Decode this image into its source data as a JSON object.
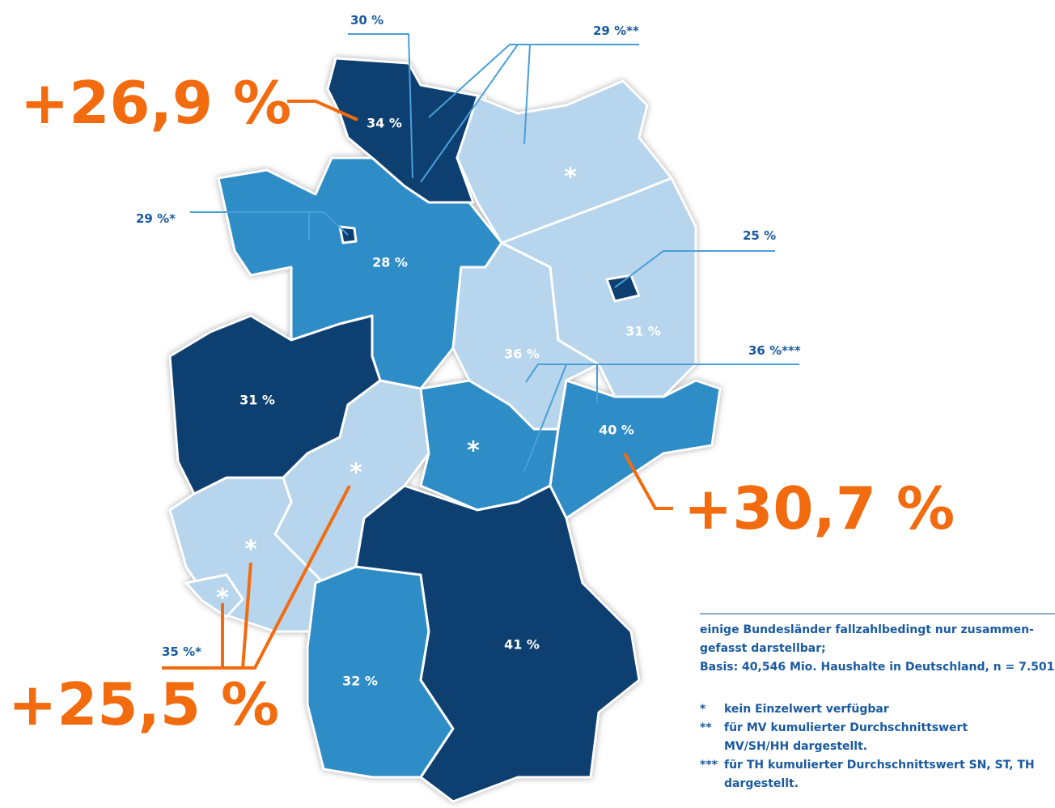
{
  "regions": [
    {
      "label": "34 %"
    },
    {
      "label": "*"
    },
    {
      "label": "28 %"
    },
    {
      "label": "31 %"
    },
    {
      "label": "36 %"
    },
    {
      "label": "31 %"
    },
    {
      "label": "*"
    },
    {
      "label": "*"
    },
    {
      "label": "40 %"
    },
    {
      "label": "*"
    },
    {
      "label": "*"
    },
    {
      "label": "32 %"
    },
    {
      "label": "41 %"
    }
  ],
  "callouts": [
    "30 %",
    "29 %**",
    "29 %*",
    "25 %",
    "36 %***",
    "35 %*"
  ],
  "changes": [
    "+26,9 %",
    "+30,7 %",
    "+25,5 %"
  ],
  "notes": {
    "basis": [
      "einige  Bundesländer fallzahlbedingt nur zusammen-",
      "gefasst darstellbar;",
      "Basis: 40,546 Mio. Haushalte in Deutschland, n = 7.501."
    ],
    "footnotes": [
      {
        "symbol": "*",
        "lines": [
          "kein Einzelwert verfügbar"
        ]
      },
      {
        "symbol": "**",
        "lines": [
          "für MV kumulierter Durchschnittswert",
          "MV/SH/HH dargestellt."
        ]
      },
      {
        "symbol": "***",
        "lines": [
          "für TH kumulierter Durchschnittswert SN, ST, TH",
          "dargestellt."
        ]
      }
    ]
  }
}
